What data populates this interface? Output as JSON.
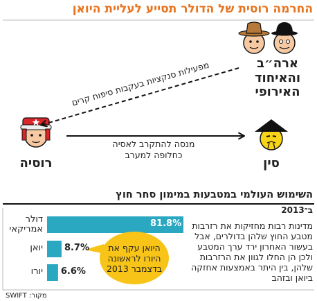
{
  "header": {
    "title": "החרמה רוסית של הדולר תסייע לעליית היואן"
  },
  "diagram": {
    "nodes": [
      {
        "label": "ארה״ב והאיחוד האירופי"
      },
      {
        "label": "רוסיה"
      },
      {
        "label": "סין"
      }
    ],
    "edges": [
      {
        "label": "מפעילות סנקציות בעקבות סיפוח קרים"
      },
      {
        "label": "מנסה להתקרב לאסיה כחלופה למערב"
      }
    ]
  },
  "chart_data": {
    "type": "bar",
    "orientation": "horizontal",
    "title": "השימוש העולמי במטבעות במימון סחר חוץ",
    "subtitle": "ב־2013",
    "categories": [
      "דולר אמריקאי",
      "יואן",
      "יורו"
    ],
    "values": [
      81.8,
      8.7,
      6.6
    ],
    "value_labels": [
      "81.8%",
      "8.7%",
      "6.6%"
    ],
    "color": "#2aa8c2",
    "annotation": "היואן עקף את היורו לראשונה בדצמבר 2013",
    "description": "מדינות רבות מחזיקות את רזרבות מטבע החוץ שלהן בדולרים, אבל בעשור האחרון ירד ערך המטבע ולכן הן החלו לגוון את הרזרבות שלהן, בין היתר באמצעות אחזקה ביואן ובזהב"
  },
  "footer": {
    "source": "מקור: SWIFT"
  }
}
